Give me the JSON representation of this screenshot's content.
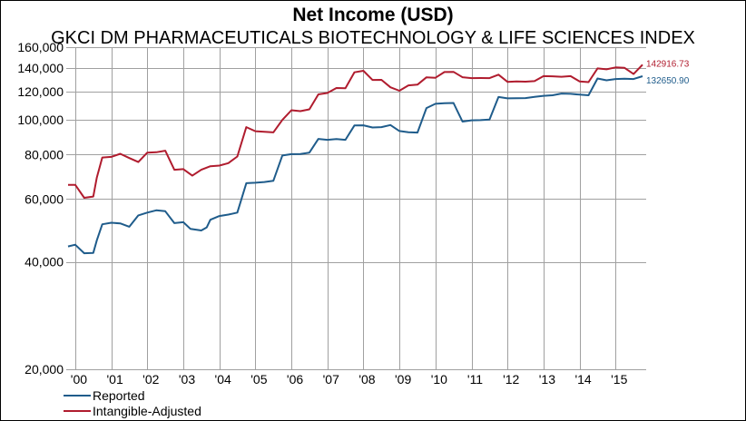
{
  "chart_data": {
    "type": "line",
    "title": "Net Income (USD)",
    "subtitle": "GKCI DM PHARMACEUTICALS BIOTECHNOLOGY & LIFE SCIENCES INDEX",
    "xlabel": "",
    "ylabel": "",
    "y_scale": "log",
    "ylim": [
      20000,
      160000
    ],
    "y_ticks": [
      20000,
      40000,
      60000,
      80000,
      100000,
      120000,
      140000,
      160000
    ],
    "y_tick_labels": [
      "20,000",
      "40,000",
      "60,000",
      "80,000",
      "100,000",
      "120,000",
      "140,000",
      "160,000"
    ],
    "xlim": [
      1999.75,
      2015.85
    ],
    "x_ticks": [
      2000,
      2001,
      2002,
      2003,
      2004,
      2005,
      2006,
      2007,
      2008,
      2009,
      2010,
      2011,
      2012,
      2013,
      2014,
      2015
    ],
    "x_tick_labels": [
      "'00",
      "'01",
      "'02",
      "'03",
      "'04",
      "'05",
      "'06",
      "'07",
      "'08",
      "'09",
      "'10",
      "'11",
      "'12",
      "'13",
      "'14",
      "'15"
    ],
    "grid": true,
    "legend_position": "bottom-left",
    "series": [
      {
        "name": "Reported",
        "color": "#1f5c8b",
        "end_label": "132650.90",
        "x": [
          1999.8,
          2000.0,
          2000.25,
          2000.5,
          2000.6,
          2000.75,
          2001.0,
          2001.25,
          2001.5,
          2001.75,
          2002.0,
          2002.25,
          2002.5,
          2002.75,
          2003.0,
          2003.2,
          2003.5,
          2003.65,
          2003.75,
          2004.0,
          2004.25,
          2004.5,
          2004.75,
          2005.0,
          2005.25,
          2005.5,
          2005.75,
          2006.0,
          2006.25,
          2006.5,
          2006.75,
          2007.0,
          2007.25,
          2007.5,
          2007.75,
          2008.0,
          2008.25,
          2008.5,
          2008.75,
          2009.0,
          2009.25,
          2009.5,
          2009.75,
          2010.0,
          2010.25,
          2010.5,
          2010.75,
          2011.0,
          2011.25,
          2011.5,
          2011.75,
          2012.0,
          2012.25,
          2012.5,
          2012.75,
          2013.0,
          2013.25,
          2013.5,
          2013.75,
          2014.0,
          2014.25,
          2014.5,
          2014.75,
          2015.0,
          2015.25,
          2015.5,
          2015.75
        ],
        "values": [
          44200,
          44700,
          42300,
          42400,
          46000,
          51000,
          51500,
          51300,
          50200,
          54000,
          55000,
          55800,
          55500,
          51400,
          51700,
          49500,
          49000,
          50000,
          52500,
          53800,
          54300,
          55000,
          66500,
          66700,
          67000,
          67500,
          79500,
          80200,
          80300,
          81000,
          88500,
          88000,
          88400,
          88000,
          96500,
          96600,
          95300,
          95500,
          96800,
          93100,
          92400,
          92200,
          108000,
          111000,
          111400,
          111600,
          99000,
          99800,
          99900,
          100300,
          116000,
          115000,
          115100,
          115200,
          116100,
          116900,
          117300,
          118600,
          118400,
          117800,
          117300,
          130700,
          129200,
          130300,
          130600,
          130300,
          132650
        ]
      },
      {
        "name": "Intangible-Adjusted",
        "color": "#b01c2e",
        "end_label": "142916.73",
        "x": [
          1999.8,
          2000.0,
          2000.25,
          2000.5,
          2000.6,
          2000.75,
          2001.0,
          2001.25,
          2001.5,
          2001.75,
          2002.0,
          2002.25,
          2002.5,
          2002.75,
          2003.0,
          2003.25,
          2003.5,
          2003.75,
          2004.0,
          2004.25,
          2004.5,
          2004.75,
          2005.0,
          2005.25,
          2005.5,
          2005.75,
          2006.0,
          2006.25,
          2006.5,
          2006.75,
          2007.0,
          2007.25,
          2007.5,
          2007.75,
          2008.0,
          2008.25,
          2008.5,
          2008.75,
          2009.0,
          2009.25,
          2009.5,
          2009.75,
          2010.0,
          2010.25,
          2010.5,
          2010.75,
          2011.0,
          2011.25,
          2011.5,
          2011.75,
          2012.0,
          2012.25,
          2012.5,
          2012.75,
          2013.0,
          2013.25,
          2013.5,
          2013.75,
          2014.0,
          2014.25,
          2014.5,
          2014.75,
          2015.0,
          2015.25,
          2015.5,
          2015.75
        ],
        "values": [
          65800,
          65800,
          60500,
          61000,
          69000,
          78500,
          78800,
          80400,
          78200,
          76200,
          81000,
          81200,
          82000,
          72500,
          72800,
          69800,
          72500,
          74200,
          74500,
          75700,
          79000,
          95500,
          93000,
          92700,
          92300,
          100000,
          106500,
          105900,
          107100,
          118000,
          119000,
          122900,
          122700,
          136000,
          137400,
          129500,
          129600,
          123500,
          120800,
          125000,
          125600,
          131700,
          131300,
          136300,
          136400,
          131800,
          131000,
          131100,
          131000,
          134000,
          127900,
          128300,
          128100,
          128500,
          132700,
          132600,
          132200,
          132700,
          128300,
          127700,
          139500,
          138700,
          140400,
          140000,
          134500,
          142916
        ]
      }
    ]
  }
}
